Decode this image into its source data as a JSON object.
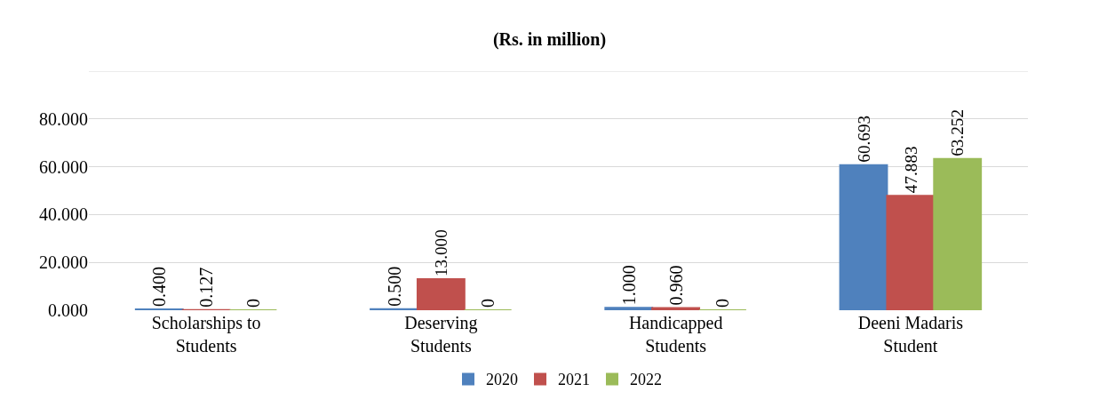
{
  "chart_data": {
    "type": "bar",
    "title": "(Rs. in million)",
    "categories": [
      "Scholarships to Students",
      "Deserving Students",
      "Handicapped Students",
      "Deeni Madaris Student"
    ],
    "series": [
      {
        "name": "2020",
        "color": "#4f81bd",
        "values": [
          0.4,
          0.5,
          1.0,
          60.693
        ],
        "value_labels": [
          "0.400",
          "0.500",
          "1.000",
          "60.693"
        ]
      },
      {
        "name": "2021",
        "color": "#c0504d",
        "values": [
          0.127,
          13.0,
          0.96,
          47.883
        ],
        "value_labels": [
          "0.127",
          "13.000",
          "0.960",
          "47.883"
        ]
      },
      {
        "name": "2022",
        "color": "#9bbb59",
        "values": [
          0,
          0,
          0,
          63.252
        ],
        "value_labels": [
          "0",
          "0",
          "0",
          "63.252"
        ]
      }
    ],
    "ylim": [
      0,
      100
    ],
    "yticks": [
      {
        "value": 0,
        "label": "0.000"
      },
      {
        "value": 20,
        "label": "20.000"
      },
      {
        "value": 40,
        "label": "40.000"
      },
      {
        "value": 60,
        "label": "60.000"
      },
      {
        "value": 80,
        "label": "80.000"
      },
      {
        "value": 100,
        "label": null
      }
    ],
    "grid": "y",
    "legend": "bottom"
  }
}
